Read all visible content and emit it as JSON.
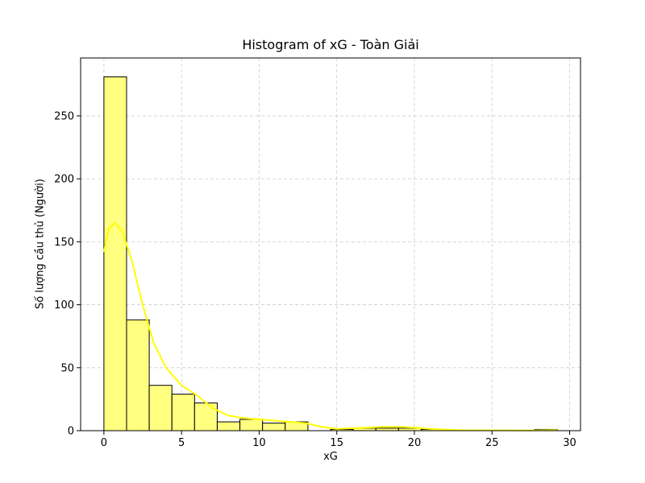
{
  "chart_data": {
    "type": "bar",
    "title": "Histogram of xG - Toàn Giải",
    "xlabel": "xG",
    "ylabel": "Số lượng cầu thủ (Người)",
    "xlim": [
      -1.5,
      30.7
    ],
    "ylim": [
      0,
      296
    ],
    "xticks": [
      0,
      5,
      10,
      15,
      20,
      25,
      30
    ],
    "yticks": [
      0,
      50,
      100,
      150,
      200,
      250
    ],
    "grid": true,
    "bin_edges": [
      0,
      1.46,
      2.92,
      4.38,
      5.84,
      7.3,
      8.76,
      10.22,
      11.68,
      13.14,
      14.6,
      16.06,
      17.52,
      18.98,
      20.44,
      21.9,
      23.36,
      24.82,
      26.28,
      27.74,
      29.2
    ],
    "counts": [
      281,
      88,
      36,
      29,
      22,
      7,
      9,
      6,
      7,
      0,
      1,
      2,
      2,
      2,
      1,
      0,
      0,
      0,
      0,
      1
    ],
    "kde": {
      "x": [
        0,
        0.3,
        0.7,
        1.2,
        1.8,
        2.5,
        3.2,
        4.0,
        5.0,
        6.0,
        7.0,
        8.0,
        9.0,
        10.0,
        11.0,
        12.0,
        13.0,
        14.0,
        15.0,
        16.0,
        17.0,
        18.0,
        19.0,
        20.0,
        21.0,
        22.0,
        23.0,
        25.0,
        27.0,
        29.2
      ],
      "y": [
        142,
        160,
        165,
        158,
        135,
        100,
        70,
        50,
        36,
        28,
        18,
        12,
        10,
        9,
        8,
        7,
        6,
        3,
        1.5,
        2,
        2.5,
        3,
        3,
        2.5,
        1.5,
        0.8,
        0.4,
        0.3,
        0.2,
        0.5
      ]
    },
    "colors": {
      "bar_fill": "#ffff80",
      "bar_edge": "#000000",
      "kde_line": "#ffff00",
      "grid": "#cccccc"
    }
  }
}
